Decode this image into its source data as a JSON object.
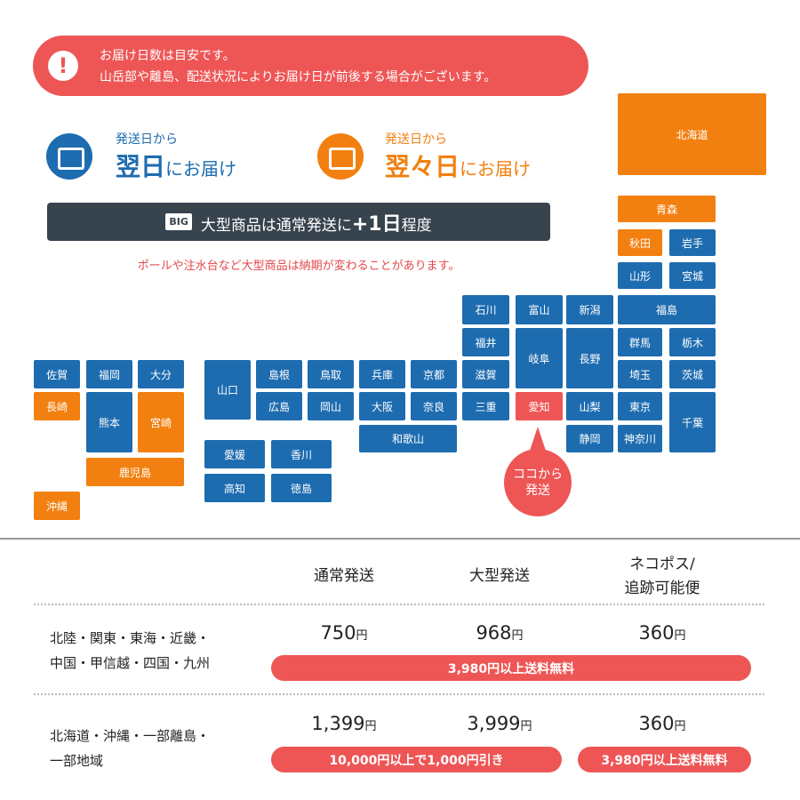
{
  "notice": {
    "line1": "お届け日数は目安です。",
    "line2": "山岳部や離島、配送状況によりお届け日が前後する場合がございます。",
    "icon": "exclamation-icon"
  },
  "legend": [
    {
      "sub": "発送日から",
      "main": "翌日",
      "suffix": "にお届け",
      "color": "#1e6cb0"
    },
    {
      "sub": "発送日から",
      "main": "翌々日",
      "suffix": "にお届け",
      "color": "#f28010"
    }
  ],
  "big_bar": {
    "icon": "BIG",
    "text": "大型商品は通常発送に",
    "plus": "+1日",
    "tail": "程度"
  },
  "big_note": "ポールや注水台など大型商品は納期が変わることがあります。",
  "colors": {
    "next_day": "#1e6cb0",
    "two_day": "#f28010",
    "origin": "#ee5555",
    "dark": "#37434d"
  },
  "map": {
    "prefectures": [
      "北海道",
      "青森",
      "秋田",
      "岩手",
      "山形",
      "宮城",
      "石川",
      "富山",
      "新潟",
      "福島",
      "福井",
      "岐阜",
      "長野",
      "群馬",
      "栃木",
      "佐賀",
      "福岡",
      "大分",
      "山口",
      "島根",
      "鳥取",
      "兵庫",
      "京都",
      "滋賀",
      "埼玉",
      "茨城",
      "長崎",
      "熊本",
      "宮崎",
      "広島",
      "岡山",
      "大阪",
      "奈良",
      "三重",
      "愛知",
      "山梨",
      "東京",
      "千葉",
      "和歌山",
      "静岡",
      "神奈川",
      "鹿児島",
      "沖縄",
      "愛媛",
      "香川",
      "高知",
      "徳島"
    ],
    "origin_label": [
      "ココから",
      "発送"
    ]
  },
  "table": {
    "headers": [
      "通常発送",
      "大型発送",
      "ネコポス/",
      "追跡可能便"
    ],
    "rows": [
      {
        "label1": "北陸・関東・東海・近畿・",
        "label2": "中国・甲信越・四国・九州",
        "prices": [
          "750",
          "968",
          "360"
        ],
        "unit": "円",
        "banner": "3,980円以上送料無料"
      },
      {
        "label1": "北海道・沖縄・一部離島・",
        "label2": "一部地域",
        "prices": [
          "1,399",
          "3,999",
          "360"
        ],
        "unit": "円",
        "banner": "10,000円以上で1,000円引き",
        "banner2": "3,980円以上送料無料"
      }
    ]
  }
}
